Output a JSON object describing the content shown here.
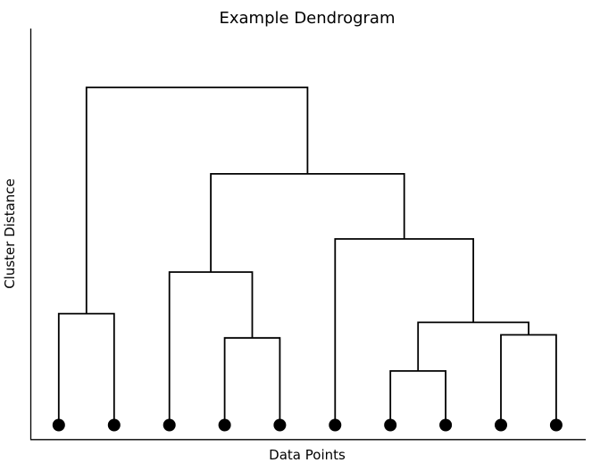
{
  "chart_data": {
    "type": "dendrogram",
    "title": "Example Dendrogram",
    "xlabel": "Data Points",
    "ylabel": "Cluster Distance",
    "leaf_count": 10,
    "leaf_marker": "filled-circle",
    "leaf_positions": [
      1,
      2,
      3,
      4,
      5,
      6,
      7,
      8,
      9,
      10
    ],
    "x_tick_labels_visible": false,
    "y_tick_labels_visible": false,
    "grid": false,
    "line_color": "#000000",
    "marker_color": "#000000",
    "background_color": "#ffffff",
    "ylim": [
      -0.45,
      11.75
    ],
    "merges": [
      {
        "id": "m1",
        "left": "L0",
        "right": "L1",
        "height": 3.3
      },
      {
        "id": "m2",
        "left": "L3",
        "right": "L4",
        "height": 2.58
      },
      {
        "id": "m3",
        "left": "L2",
        "right": "m2",
        "height": 4.53
      },
      {
        "id": "m4",
        "left": "L6",
        "right": "L7",
        "height": 1.6
      },
      {
        "id": "m5",
        "left": "L8",
        "right": "L9",
        "height": 2.67
      },
      {
        "id": "m6",
        "left": "m4",
        "right": "m5",
        "height": 3.04
      },
      {
        "id": "m7",
        "left": "L5",
        "right": "m6",
        "height": 5.51
      },
      {
        "id": "m8",
        "left": "m3",
        "right": "m7",
        "height": 7.44
      },
      {
        "id": "m9",
        "left": "m1",
        "right": "m8",
        "height": 10.0
      }
    ]
  }
}
